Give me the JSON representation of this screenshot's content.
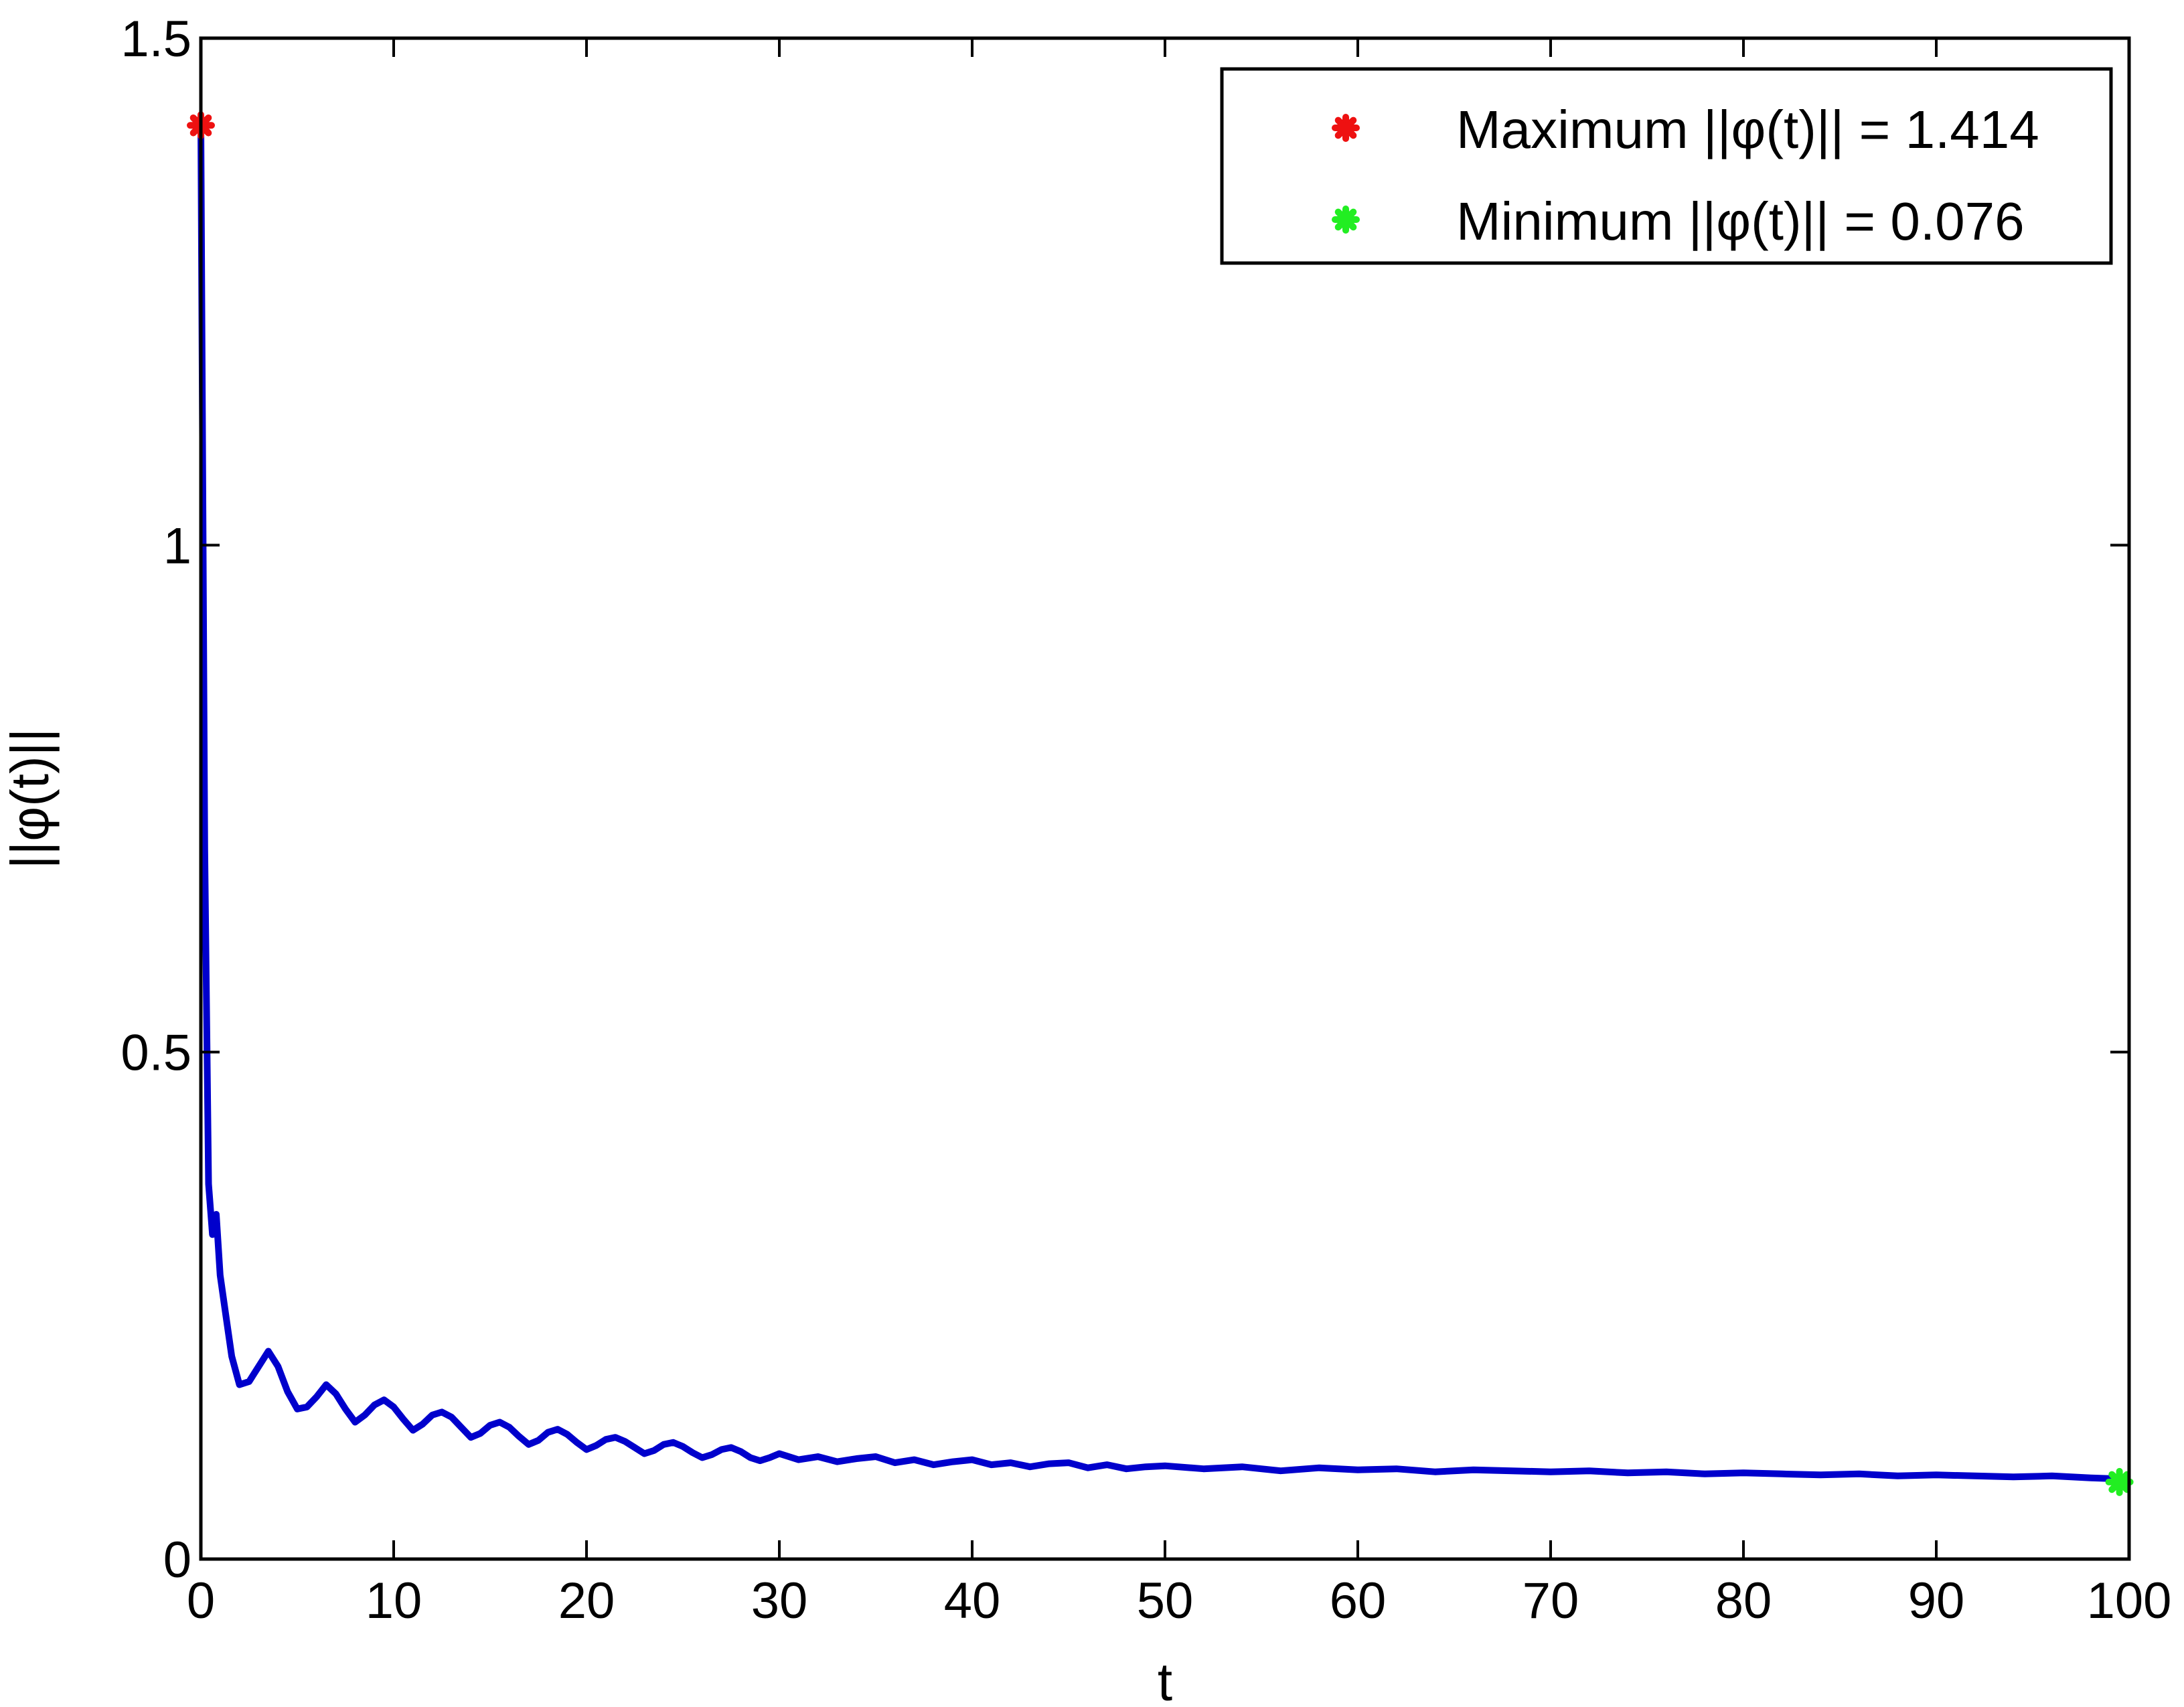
{
  "chart_data": {
    "type": "line",
    "title": "",
    "xlabel": "t",
    "ylabel": "||φ(t)||",
    "xlim": [
      0,
      100
    ],
    "ylim": [
      0,
      1.5
    ],
    "xticks": [
      0,
      10,
      20,
      30,
      40,
      50,
      60,
      70,
      80,
      90,
      100
    ],
    "yticks": [
      0,
      0.5,
      1,
      1.5
    ],
    "xtick_labels": [
      "0",
      "10",
      "20",
      "30",
      "40",
      "50",
      "60",
      "70",
      "80",
      "90",
      "100"
    ],
    "ytick_labels": [
      "0",
      "0.5",
      "1",
      "1.5"
    ],
    "grid": false,
    "legend_position": "top-right",
    "series": [
      {
        "color": "#0000cc",
        "x": [
          0,
          0.2,
          0.4,
          0.6,
          0.8,
          1.0,
          1.3,
          1.6,
          2.0,
          2.5,
          3.0,
          3.5,
          4.0,
          4.5,
          5.0,
          5.5,
          6.0,
          6.5,
          7.0,
          7.5,
          8.0,
          8.5,
          9.0,
          9.5,
          10.0,
          10.5,
          11.0,
          11.5,
          12.0,
          12.5,
          13.0,
          13.5,
          14.0,
          14.5,
          15.0,
          15.5,
          16.0,
          16.5,
          17.0,
          17.5,
          18.0,
          18.5,
          19.0,
          19.5,
          20.0,
          20.5,
          21.0,
          21.5,
          22.0,
          22.5,
          23.0,
          23.5,
          24.0,
          24.5,
          25.0,
          25.5,
          26.0,
          26.5,
          27.0,
          27.5,
          28.0,
          28.5,
          29.0,
          29.5,
          30.0,
          31.0,
          32.0,
          33.0,
          34.0,
          35.0,
          36.0,
          37.0,
          38.0,
          39.0,
          40.0,
          41.0,
          42.0,
          43.0,
          44.0,
          45.0,
          46.0,
          47.0,
          48.0,
          49.0,
          50.0,
          52.0,
          54.0,
          56.0,
          58.0,
          60.0,
          62.0,
          64.0,
          66.0,
          68.0,
          70.0,
          72.0,
          74.0,
          76.0,
          78.0,
          80.0,
          82.0,
          84.0,
          86.0,
          88.0,
          90.0,
          92.0,
          94.0,
          96.0,
          98.0,
          99.5
        ],
        "y": [
          1.414,
          0.7,
          0.37,
          0.32,
          0.34,
          0.28,
          0.24,
          0.2,
          0.172,
          0.175,
          0.19,
          0.205,
          0.19,
          0.165,
          0.148,
          0.15,
          0.16,
          0.172,
          0.163,
          0.148,
          0.135,
          0.142,
          0.152,
          0.157,
          0.15,
          0.138,
          0.127,
          0.133,
          0.142,
          0.145,
          0.14,
          0.13,
          0.12,
          0.124,
          0.132,
          0.135,
          0.13,
          0.121,
          0.113,
          0.117,
          0.125,
          0.128,
          0.123,
          0.115,
          0.108,
          0.112,
          0.118,
          0.12,
          0.116,
          0.11,
          0.104,
          0.107,
          0.113,
          0.115,
          0.111,
          0.105,
          0.1,
          0.103,
          0.108,
          0.11,
          0.106,
          0.1,
          0.097,
          0.1,
          0.104,
          0.098,
          0.101,
          0.096,
          0.099,
          0.101,
          0.095,
          0.098,
          0.093,
          0.096,
          0.098,
          0.093,
          0.095,
          0.091,
          0.094,
          0.095,
          0.09,
          0.093,
          0.089,
          0.091,
          0.092,
          0.089,
          0.091,
          0.087,
          0.09,
          0.088,
          0.089,
          0.086,
          0.088,
          0.087,
          0.086,
          0.087,
          0.085,
          0.086,
          0.084,
          0.085,
          0.084,
          0.083,
          0.084,
          0.082,
          0.083,
          0.082,
          0.081,
          0.082,
          0.08,
          0.079
        ]
      }
    ],
    "markers": [
      {
        "label": "Maximum ||φ(t)|| = 1.414",
        "x": 0,
        "y": 1.414,
        "color": "#ee1111"
      },
      {
        "label": "Minimum ||φ(t)|| = 0.076",
        "x": 99.5,
        "y": 0.076,
        "color": "#22ee22"
      }
    ]
  }
}
